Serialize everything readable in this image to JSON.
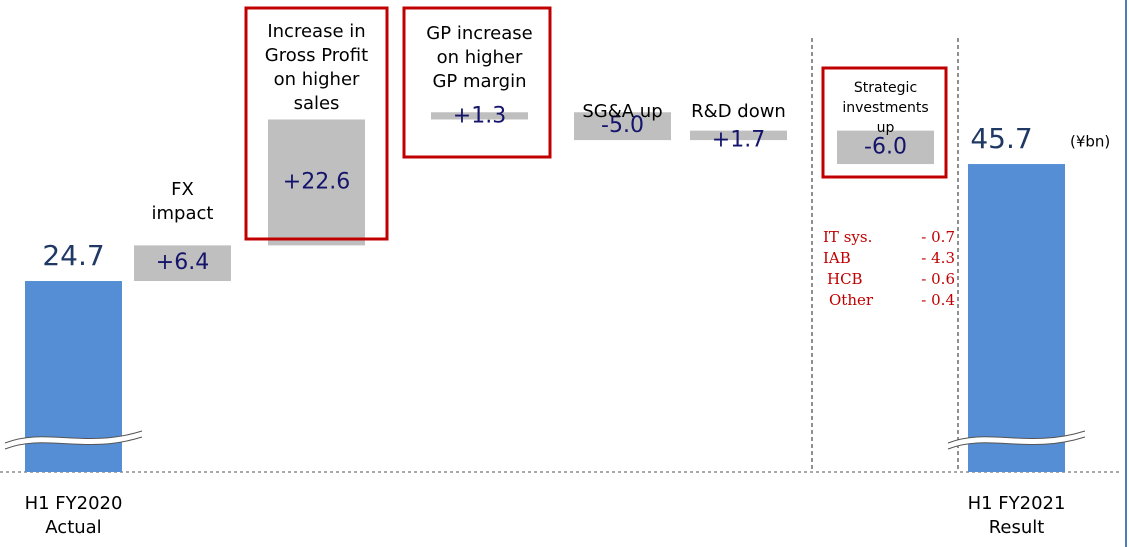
{
  "chart_data": {
    "type": "waterfall",
    "unit": "(¥bn)",
    "categories": [
      "H1 FY2020\nActual",
      "FX\nimpact",
      "Increase in\nGross Profit\non higher\nsales",
      "GP increase\non higher\nGP margin",
      "SG&A up",
      "R&D down",
      "Strategic\ninvestments\nup",
      "H1 FY2021\nResult"
    ],
    "values": [
      24.7,
      6.4,
      22.6,
      1.3,
      -5.0,
      1.7,
      -6.0,
      45.7
    ],
    "value_labels": [
      "24.7",
      "+6.4",
      "+22.6",
      "+1.3",
      "-5.0",
      "+1.7",
      "-6.0",
      "45.7"
    ],
    "total_color": "#558ed5",
    "step_color": "#bfbfbf",
    "highlighted": [
      2,
      3,
      6
    ],
    "highlight_color": "#c00000",
    "breakdown": [
      {
        "name": "IT sys.",
        "value": -0.7,
        "label": "- 0.7"
      },
      {
        "name": "IAB",
        "value": -4.3,
        "label": "- 4.3"
      },
      {
        "name": "HCB",
        "value": -0.6,
        "label": "- 0.6"
      },
      {
        "name": "Other",
        "value": -0.4,
        "label": "- 0.4"
      }
    ],
    "breakdown_color": "#c00000"
  }
}
